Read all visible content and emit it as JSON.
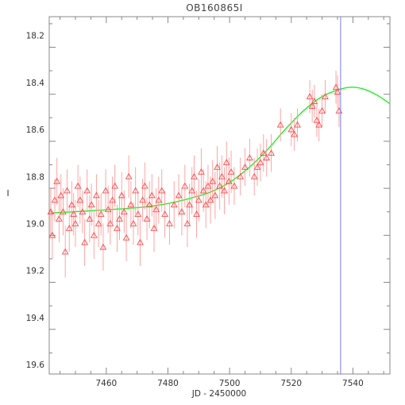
{
  "chart_data": {
    "type": "scatter",
    "title": "OB160865I",
    "xlabel": "JD - 2450000",
    "ylabel": "I",
    "xlim": [
      7441.5,
      7552
    ],
    "ylim": [
      18.12,
      19.64
    ],
    "y_inverted": true,
    "x_ticks": [
      7460,
      7480,
      7500,
      7520,
      7540
    ],
    "x_tick_labels": [
      "7460",
      "7480",
      "7500",
      "7520",
      "7540"
    ],
    "y_ticks": [
      18.2,
      18.4,
      18.6,
      18.8,
      19.0,
      19.2,
      19.4,
      19.6
    ],
    "y_tick_labels": [
      "18.2",
      "18.4",
      "18.6",
      "18.8",
      "19.0",
      "19.2",
      "19.4",
      "19.6"
    ],
    "grid": false,
    "legend": "none",
    "colors": {
      "points": "#ff4a4a",
      "errorbars": "#ff9a9a",
      "model": "#22ee22",
      "marker_line": "#7a7aff",
      "axes": "#888888"
    },
    "vertical_line_x": 7536,
    "series": [
      {
        "kind": "photometry",
        "marker": "triangle",
        "x": [
          7442.0,
          7442.5,
          7443.3,
          7444.0,
          7444.7,
          7445.3,
          7446.0,
          7446.7,
          7447.3,
          7448.0,
          7448.8,
          7449.4,
          7450.0,
          7450.8,
          7451.5,
          7452.3,
          7453.0,
          7453.8,
          7454.6,
          7455.2,
          7456.0,
          7456.8,
          7457.5,
          7458.3,
          7459.0,
          7459.8,
          7460.6,
          7461.3,
          7462.0,
          7462.8,
          7463.5,
          7464.3,
          7465.0,
          7465.8,
          7466.5,
          7467.3,
          7468.0,
          7468.8,
          7469.5,
          7470.3,
          7471.0,
          7471.8,
          7472.5,
          7473.2,
          7474.0,
          7474.8,
          7475.5,
          7476.2,
          7477.0,
          7478.0,
          7479.0,
          7480.5,
          7482.0,
          7483.5,
          7484.5,
          7485.5,
          7486.3,
          7487.0,
          7487.8,
          7488.5,
          7489.3,
          7490.0,
          7490.8,
          7491.5,
          7492.3,
          7493.0,
          7493.8,
          7494.5,
          7495.3,
          7496.0,
          7496.8,
          7497.5,
          7498.3,
          7499.0,
          7499.8,
          7500.5,
          7501.5,
          7503.5,
          7505.0,
          7506.5,
          7508.0,
          7509.0,
          7510.0,
          7511.0,
          7512.0,
          7513.5,
          7516.5,
          7520.0,
          7521.0,
          7522.0,
          7526.0,
          7526.8,
          7527.5,
          7528.3,
          7529.0,
          7530.0,
          7531.0,
          7534.5,
          7535.0,
          7535.5
        ],
        "y": [
          18.95,
          19.05,
          18.9,
          18.82,
          18.98,
          18.88,
          18.95,
          19.12,
          18.86,
          19.02,
          18.92,
          18.96,
          19.0,
          18.84,
          18.9,
          18.95,
          19.08,
          18.86,
          18.98,
          18.92,
          19.05,
          18.88,
          19.0,
          18.96,
          19.1,
          18.86,
          18.94,
          19.0,
          18.9,
          18.84,
          19.02,
          18.98,
          18.88,
          18.95,
          19.06,
          18.8,
          18.92,
          19.0,
          18.86,
          18.96,
          19.08,
          18.9,
          18.84,
          18.98,
          18.92,
          18.88,
          19.02,
          18.94,
          18.9,
          18.86,
          18.96,
          19.0,
          18.92,
          18.88,
          18.95,
          18.84,
          19.0,
          18.92,
          18.86,
          18.8,
          18.96,
          18.9,
          18.78,
          18.86,
          18.92,
          18.84,
          18.9,
          18.82,
          18.88,
          18.76,
          18.84,
          18.8,
          18.86,
          18.74,
          18.82,
          18.78,
          18.84,
          18.8,
          18.76,
          18.72,
          18.8,
          18.76,
          18.74,
          18.7,
          18.72,
          18.7,
          18.58,
          18.6,
          18.62,
          18.58,
          18.46,
          18.5,
          18.48,
          18.56,
          18.58,
          18.52,
          18.46,
          18.42,
          18.44,
          18.52
        ],
        "yerr": [
          0.1,
          0.1,
          0.09,
          0.1,
          0.1,
          0.09,
          0.1,
          0.11,
          0.09,
          0.1,
          0.1,
          0.09,
          0.1,
          0.09,
          0.1,
          0.09,
          0.1,
          0.09,
          0.1,
          0.09,
          0.1,
          0.09,
          0.1,
          0.09,
          0.1,
          0.09,
          0.1,
          0.09,
          0.1,
          0.09,
          0.1,
          0.09,
          0.1,
          0.09,
          0.1,
          0.09,
          0.1,
          0.09,
          0.1,
          0.09,
          0.1,
          0.09,
          0.1,
          0.09,
          0.1,
          0.09,
          0.1,
          0.09,
          0.1,
          0.09,
          0.1,
          0.09,
          0.1,
          0.09,
          0.1,
          0.09,
          0.1,
          0.09,
          0.1,
          0.09,
          0.1,
          0.09,
          0.1,
          0.09,
          0.1,
          0.09,
          0.1,
          0.09,
          0.1,
          0.09,
          0.1,
          0.09,
          0.1,
          0.09,
          0.1,
          0.09,
          0.08,
          0.08,
          0.08,
          0.08,
          0.08,
          0.08,
          0.08,
          0.08,
          0.08,
          0.08,
          0.07,
          0.07,
          0.07,
          0.07,
          0.07,
          0.07,
          0.07,
          0.07,
          0.07,
          0.07,
          0.07,
          0.07,
          0.07,
          0.07
        ]
      },
      {
        "kind": "model",
        "x": [
          7442,
          7452,
          7462,
          7472,
          7480,
          7488,
          7494,
          7500,
          7506,
          7512,
          7518,
          7524,
          7530,
          7536,
          7540,
          7544,
          7548,
          7552
        ],
        "y": [
          18.955,
          18.948,
          18.94,
          18.93,
          18.915,
          18.89,
          18.865,
          18.825,
          18.765,
          18.69,
          18.6,
          18.52,
          18.46,
          18.428,
          18.42,
          18.43,
          18.455,
          18.49
        ]
      }
    ]
  }
}
